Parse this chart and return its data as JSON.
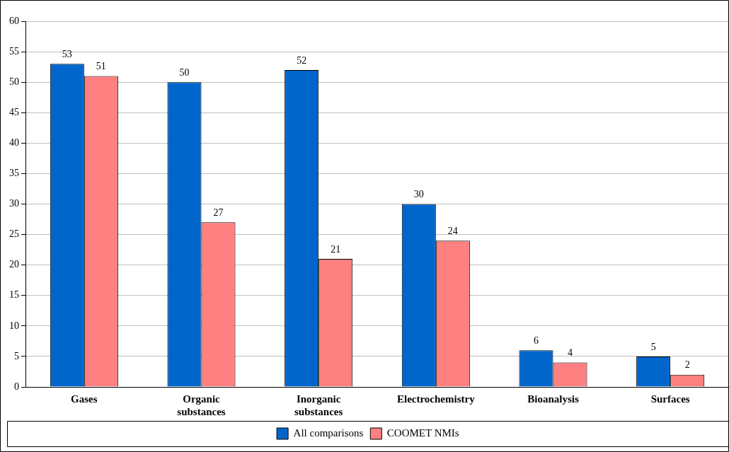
{
  "chart_data": {
    "type": "bar",
    "categories": [
      "Gases",
      "Organic substances",
      "Inorganic substances",
      "Electrochemistry",
      "Bioanalysis",
      "Surfaces"
    ],
    "series": [
      {
        "name": "All comparisons",
        "color": "#0066cc",
        "values": [
          53,
          50,
          52,
          30,
          6,
          5
        ]
      },
      {
        "name": "COOMET NMIs",
        "color": "#ff8080",
        "values": [
          51,
          27,
          21,
          24,
          4,
          2
        ]
      }
    ],
    "ylim": [
      0,
      60
    ],
    "yticks": [
      0,
      5,
      10,
      15,
      20,
      25,
      30,
      35,
      40,
      45,
      50,
      55,
      60
    ],
    "grid": "y",
    "legend": "bottom",
    "data_labels": true
  }
}
